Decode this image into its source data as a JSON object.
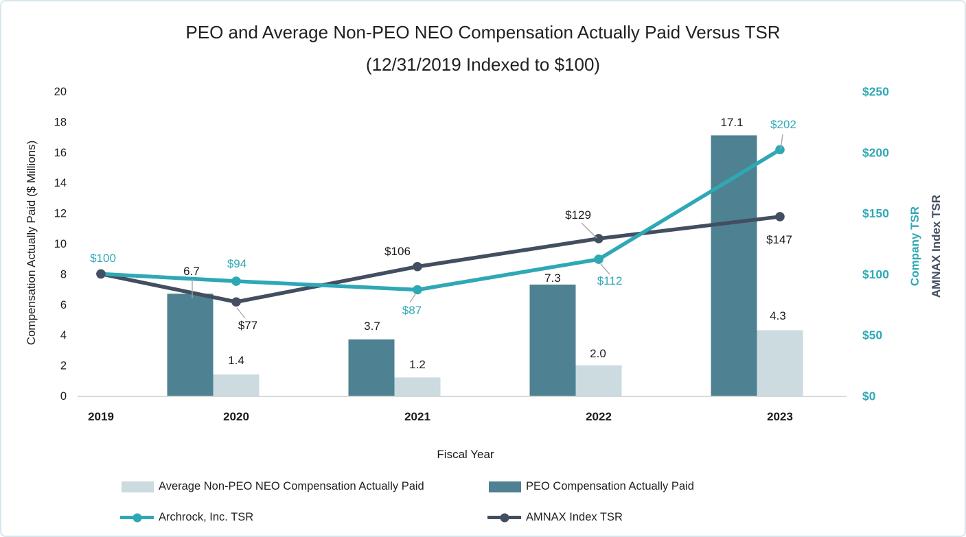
{
  "title": {
    "line1": "PEO and Average Non-PEO NEO Compensation Actually Paid Versus TSR",
    "line2": "(12/31/2019 Indexed to $100)"
  },
  "axes": {
    "left_title": "Compensation Actually Paid ($ Millions)",
    "right_title_company": "Company TSR",
    "right_title_index": "AMNAX Index TSR",
    "x_title": "Fiscal Year",
    "left_ticks": [
      "0",
      "2",
      "4",
      "6",
      "8",
      "10",
      "12",
      "14",
      "16",
      "18",
      "20"
    ],
    "right_ticks": [
      "$0",
      "$50",
      "$100",
      "$150",
      "$200",
      "$250"
    ]
  },
  "colors": {
    "bar_light": "#CBDBE0",
    "bar_dark": "#4E8191",
    "line_teal": "#2FA8B6",
    "line_slate": "#434E61",
    "baseline": "#D9D9D9",
    "leader": "#A8A8A8",
    "text": "#1a1a1a",
    "border": "#d8e6ec"
  },
  "chart_data": {
    "type": "combo-bar-line",
    "title": "PEO and Average Non-PEO NEO Compensation Actually Paid Versus TSR (12/31/2019 Indexed to $100)",
    "categories": [
      "2019",
      "2020",
      "2021",
      "2022",
      "2023"
    ],
    "series": [
      {
        "name": "Average Non-PEO NEO Compensation Actually Paid",
        "kind": "bar",
        "axis": "left",
        "color": "#CBDBE0",
        "values": [
          null,
          1.4,
          1.2,
          2.0,
          4.3
        ],
        "data_labels": [
          "",
          "1.4",
          "1.2",
          "2.0",
          "4.3"
        ]
      },
      {
        "name": "PEO Compensation Actually Paid",
        "kind": "bar",
        "axis": "left",
        "color": "#4E8191",
        "values": [
          null,
          6.7,
          3.7,
          7.3,
          17.1
        ],
        "data_labels": [
          "",
          "6.7",
          "3.7",
          "7.3",
          "17.1"
        ]
      },
      {
        "name": "Archrock, Inc. TSR",
        "kind": "line",
        "axis": "right",
        "color": "#2FA8B6",
        "values": [
          100,
          94,
          87,
          112,
          202
        ],
        "data_labels": [
          "$100",
          "$94",
          "$87",
          "$112",
          "$202"
        ]
      },
      {
        "name": "AMNAX Index TSR",
        "kind": "line",
        "axis": "right",
        "color": "#434E61",
        "values": [
          100,
          77,
          106,
          129,
          147
        ],
        "data_labels": [
          "",
          "$77",
          "$106",
          "$129",
          "$147"
        ]
      }
    ],
    "left_axis": {
      "label": "Compensation Actually Paid ($ Millions)",
      "min": 0,
      "max": 20,
      "step": 2
    },
    "right_axis": {
      "label": "Company TSR / AMNAX Index TSR",
      "min": 0,
      "max": 250,
      "step": 50
    },
    "xlabel": "Fiscal Year",
    "grid": false,
    "legend_position": "bottom"
  }
}
